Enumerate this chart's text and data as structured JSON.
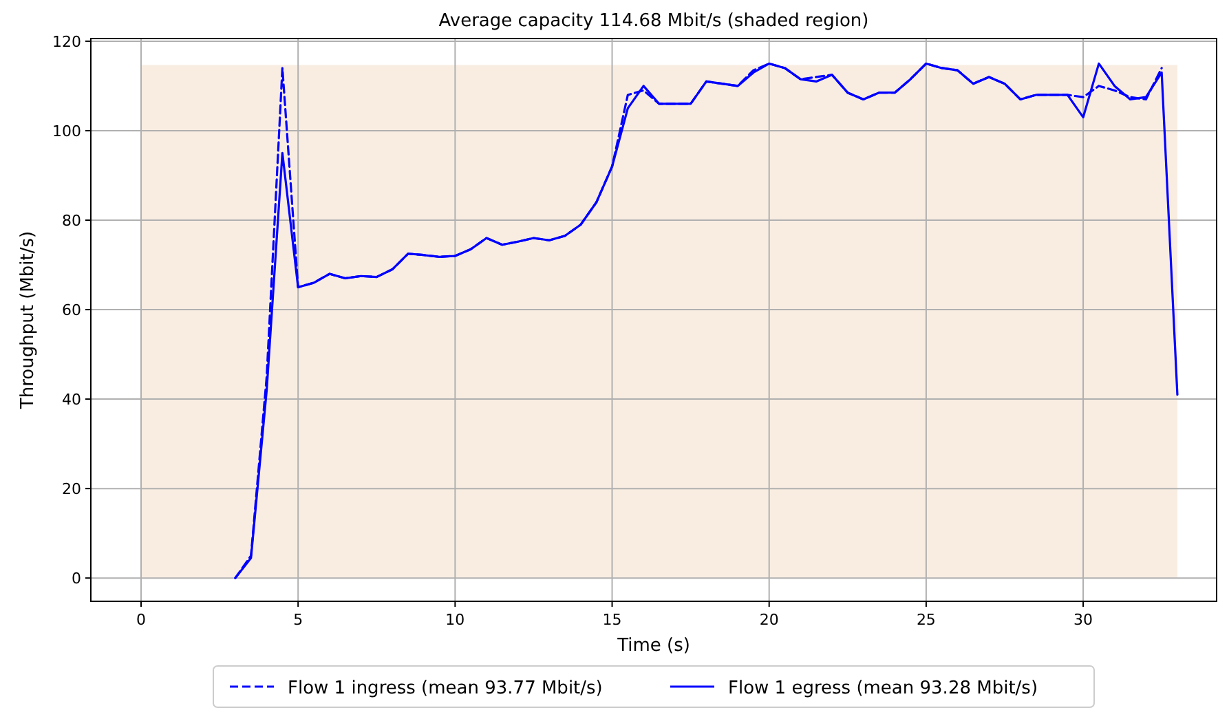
{
  "chart_data": {
    "type": "line",
    "title": "Average capacity 114.68 Mbit/s (shaded region)",
    "xlabel": "Time (s)",
    "ylabel": "Throughput (Mbit/s)",
    "xlim": [
      -1.6,
      34.25
    ],
    "ylim": [
      -5.2,
      120.6
    ],
    "xticks": [
      0,
      5,
      10,
      15,
      20,
      25,
      30
    ],
    "yticks": [
      0,
      20,
      40,
      60,
      80,
      100,
      120
    ],
    "grid": true,
    "legend": "bottom",
    "bands": [
      {
        "axis": "y",
        "from": 0,
        "to": 114.68,
        "color": "#f9ede2"
      }
    ],
    "x": [
      3,
      3.5,
      4,
      4.5,
      5,
      5.5,
      6,
      6.5,
      7,
      7.5,
      8,
      8.5,
      9,
      9.5,
      10,
      10.5,
      11,
      11.5,
      12,
      12.5,
      13,
      13.5,
      14,
      14.5,
      15,
      15.5,
      16,
      16.5,
      17,
      17.5,
      18,
      18.5,
      19,
      19.5,
      20,
      20.5,
      21,
      21.5,
      22,
      22.5,
      23,
      23.5,
      24,
      24.5,
      25,
      25.5,
      26,
      26.5,
      27,
      27.5,
      28,
      28.5,
      29,
      29.5,
      30,
      30.5,
      31,
      31.5,
      32,
      32.5,
      33
    ],
    "series": [
      {
        "name": "Flow 1 ingress (mean 93.77 Mbit/s)",
        "color": "#0000ff",
        "line_style": "dashed",
        "values": [
          0,
          5,
          45,
          114,
          65,
          66,
          68,
          67,
          67.5,
          67.3,
          69,
          72.5,
          72.2,
          71.8,
          72,
          73.5,
          76,
          74.5,
          75.2,
          76,
          75.5,
          76.5,
          79,
          84,
          92,
          108,
          109,
          106,
          106,
          106,
          111,
          110.5,
          110,
          113.5,
          115,
          114,
          111.5,
          112,
          112.5,
          108.5,
          107,
          108.5,
          108.5,
          111.5,
          115,
          114,
          113.5,
          110.5,
          112,
          110.5,
          107,
          108,
          108,
          108,
          107.5,
          110,
          109,
          107.5,
          107,
          114,
          null
        ]
      },
      {
        "name": "Flow 1 egress (mean 93.28 Mbit/s)",
        "color": "#0000ff",
        "line_style": "solid",
        "values": [
          0,
          4.5,
          42,
          95,
          65,
          66,
          68,
          67,
          67.5,
          67.3,
          69,
          72.5,
          72.2,
          71.8,
          72,
          73.5,
          76,
          74.5,
          75.2,
          76,
          75.5,
          76.5,
          79,
          84,
          92,
          105,
          110,
          106,
          106,
          106,
          111,
          110.5,
          110,
          113,
          115,
          114,
          111.5,
          111,
          112.5,
          108.5,
          107,
          108.5,
          108.5,
          111.5,
          115,
          114,
          113.5,
          110.5,
          112,
          110.5,
          107,
          108,
          108,
          108,
          103,
          115,
          110,
          107,
          107.5,
          113,
          41
        ]
      }
    ]
  }
}
